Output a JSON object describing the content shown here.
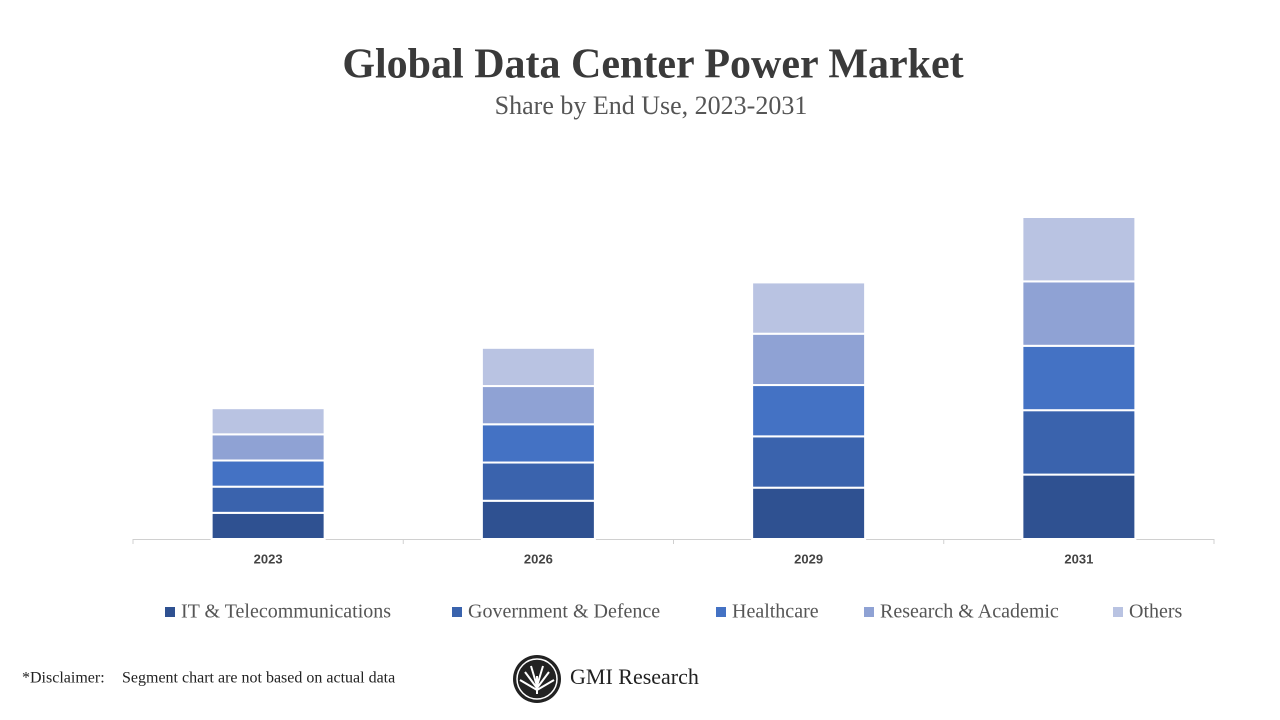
{
  "chart_data": {
    "type": "stacked-bar",
    "title": "Global Data Center Power Market",
    "subtitle": "Share by End Use, 2023-2031",
    "categories": [
      "2023",
      "2026",
      "2029",
      "2031"
    ],
    "series": [
      {
        "name": "IT & Telecommunications",
        "color": "#2f5191",
        "values": [
          26,
          38,
          51,
          64
        ]
      },
      {
        "name": "Government & Defence",
        "color": "#3a63ad",
        "values": [
          26,
          38,
          51,
          64
        ]
      },
      {
        "name": "Healthcare",
        "color": "#4472c4",
        "values": [
          26,
          38,
          51,
          64
        ]
      },
      {
        "name": "Research & Academic",
        "color": "#8fa2d4",
        "values": [
          26,
          38,
          51,
          64
        ]
      },
      {
        "name": "Others",
        "color": "#b9c3e2",
        "values": [
          26,
          38,
          51,
          64
        ]
      }
    ]
  },
  "footer": {
    "disclaimer_label": "*Disclaimer:",
    "disclaimer_text": "Segment chart are not based on actual data",
    "brand": "GMI Research"
  }
}
